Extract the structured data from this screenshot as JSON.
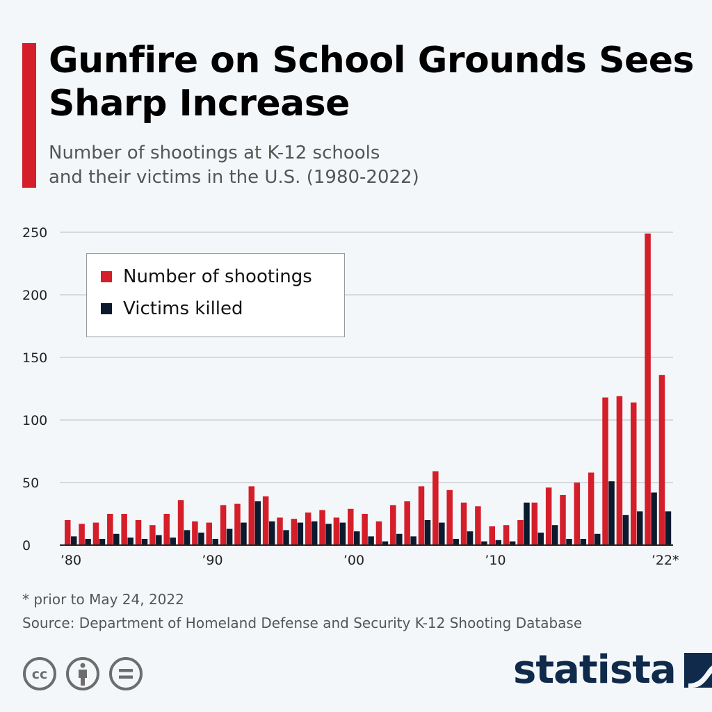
{
  "header": {
    "title": "Gunfire on School Grounds Sees Sharp Increase",
    "subtitle_line1": "Number of shootings at K-12 schools",
    "subtitle_line2": "and their victims in the U.S. (1980-2022)"
  },
  "colors": {
    "accent": "#d41e2a",
    "shootings": "#d41e2a",
    "killed": "#0c1a2e",
    "brand": "#0f2a4a"
  },
  "chart_data": {
    "type": "bar",
    "title": "Gunfire on School Grounds Sees Sharp Increase",
    "xlabel": "",
    "ylabel": "",
    "ylim": [
      0,
      250
    ],
    "yticks": [
      0,
      50,
      100,
      150,
      200,
      250
    ],
    "ytick_labels": [
      "0",
      "50",
      "100",
      "150",
      "200",
      "250"
    ],
    "grid": true,
    "legend_position": "top-left",
    "categories": [
      1980,
      1981,
      1982,
      1983,
      1984,
      1985,
      1986,
      1987,
      1988,
      1989,
      1990,
      1991,
      1992,
      1993,
      1994,
      1995,
      1996,
      1997,
      1998,
      1999,
      2000,
      2001,
      2002,
      2003,
      2004,
      2005,
      2006,
      2007,
      2008,
      2009,
      2010,
      2011,
      2012,
      2013,
      2014,
      2015,
      2016,
      2017,
      2018,
      2019,
      2020,
      2021,
      2022
    ],
    "xtick_labels": [
      {
        "index": 0,
        "label": "’80"
      },
      {
        "index": 10,
        "label": "’90"
      },
      {
        "index": 20,
        "label": "’00"
      },
      {
        "index": 30,
        "label": "’10"
      },
      {
        "index": 42,
        "label": "’22*"
      }
    ],
    "series": [
      {
        "name": "Number of shootings",
        "color": "#d41e2a",
        "values": [
          20,
          17,
          18,
          25,
          25,
          20,
          16,
          25,
          36,
          19,
          18,
          32,
          33,
          47,
          39,
          22,
          21,
          26,
          28,
          22,
          29,
          25,
          19,
          32,
          35,
          47,
          59,
          44,
          34,
          31,
          15,
          16,
          20,
          34,
          46,
          40,
          50,
          58,
          118,
          119,
          114,
          249,
          136
        ]
      },
      {
        "name": "Victims killed",
        "color": "#0c1a2e",
        "values": [
          7,
          5,
          5,
          9,
          6,
          5,
          8,
          6,
          12,
          10,
          5,
          13,
          18,
          35,
          19,
          12,
          18,
          19,
          17,
          18,
          11,
          7,
          3,
          9,
          7,
          20,
          18,
          5,
          11,
          3,
          4,
          3,
          34,
          10,
          16,
          5,
          5,
          9,
          51,
          24,
          27,
          42,
          27
        ]
      }
    ]
  },
  "legend": {
    "items": [
      {
        "label": "Number of shootings"
      },
      {
        "label": "Victims killed"
      }
    ]
  },
  "footer": {
    "note": "* prior to May 24, 2022",
    "source": "Source: Department of Homeland Defense and Security K-12 Shooting Database",
    "license_icons": [
      "cc-icon",
      "attribution-icon",
      "no-derivatives-icon"
    ],
    "brand": "statista"
  }
}
